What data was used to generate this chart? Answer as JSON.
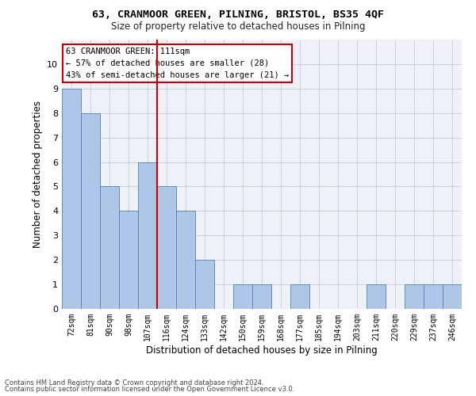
{
  "title1": "63, CRANMOOR GREEN, PILNING, BRISTOL, BS35 4QF",
  "title2": "Size of property relative to detached houses in Pilning",
  "xlabel": "Distribution of detached houses by size in Pilning",
  "ylabel": "Number of detached properties",
  "categories": [
    "72sqm",
    "81sqm",
    "90sqm",
    "98sqm",
    "107sqm",
    "116sqm",
    "124sqm",
    "133sqm",
    "142sqm",
    "150sqm",
    "159sqm",
    "168sqm",
    "177sqm",
    "185sqm",
    "194sqm",
    "203sqm",
    "211sqm",
    "220sqm",
    "229sqm",
    "237sqm",
    "246sqm"
  ],
  "values": [
    9,
    8,
    5,
    4,
    6,
    5,
    4,
    2,
    0,
    1,
    1,
    0,
    1,
    0,
    0,
    0,
    1,
    0,
    1,
    1,
    1
  ],
  "bar_color": "#aec6e8",
  "bar_edge_color": "#5580b0",
  "vline_x": 4.5,
  "vline_color": "#cc0000",
  "ylim": [
    0,
    11
  ],
  "yticks": [
    0,
    1,
    2,
    3,
    4,
    5,
    6,
    7,
    8,
    9,
    10,
    11
  ],
  "annotation_title": "63 CRANMOOR GREEN: 111sqm",
  "annotation_line1": "← 57% of detached houses are smaller (28)",
  "annotation_line2": "43% of semi-detached houses are larger (21) →",
  "annotation_box_color": "#ffffff",
  "annotation_box_edge": "#cc0000",
  "footer1": "Contains HM Land Registry data © Crown copyright and database right 2024.",
  "footer2": "Contains public sector information licensed under the Open Government Licence v3.0.",
  "bg_color": "#eef2f8",
  "grid_color": "#c8d0de"
}
